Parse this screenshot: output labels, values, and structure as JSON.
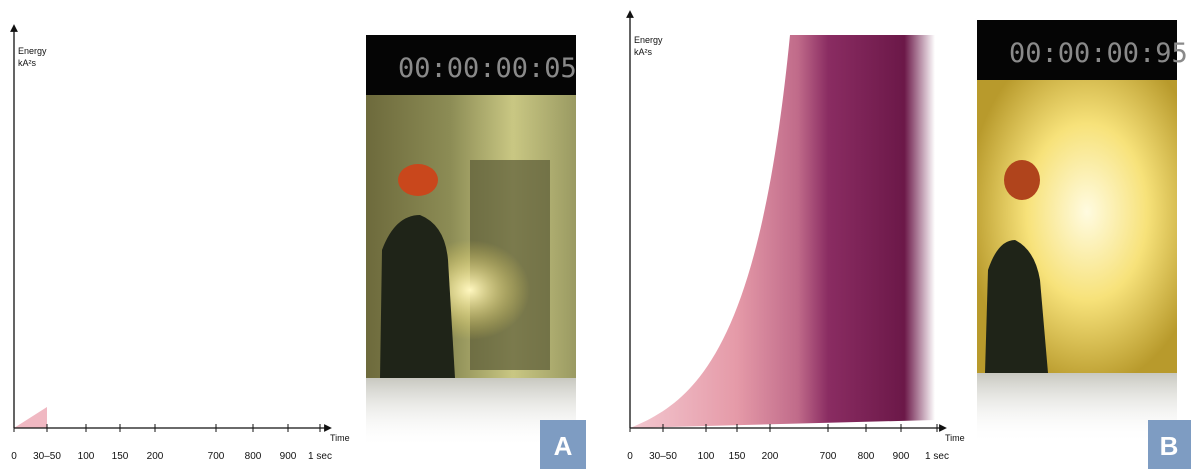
{
  "panels": [
    {
      "energy_label": "Energy",
      "unit_label": "kA²s",
      "time_label": "Time",
      "ticks": [
        "0",
        "30–50",
        "100",
        "150",
        "200",
        "700",
        "800",
        "900",
        "1 sec"
      ],
      "timestamp": "00:00:00:05",
      "letter": "A"
    },
    {
      "energy_label": "Energy",
      "unit_label": "kA²s",
      "time_label": "Time",
      "ticks": [
        "0",
        "30–50",
        "100",
        "150",
        "200",
        "700",
        "800",
        "900",
        "1 sec"
      ],
      "timestamp": "00:00:00:95",
      "letter": "B"
    }
  ]
}
